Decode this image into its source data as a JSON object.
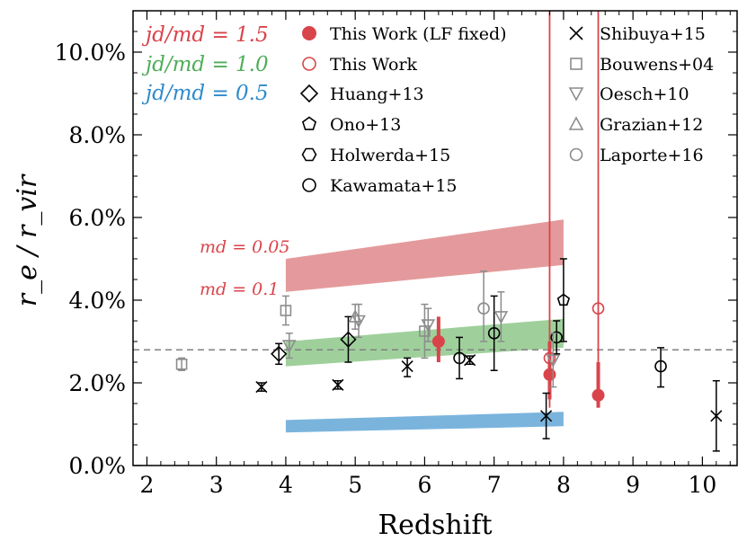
{
  "chart_data": {
    "type": "scatter",
    "title": "",
    "xlabel": "Redshift",
    "ylabel": "r_e / r_vir",
    "xlim": [
      1.8,
      10.5
    ],
    "ylim": [
      0.0,
      11.0
    ],
    "x_ticks": [
      "2",
      "3",
      "4",
      "5",
      "6",
      "7",
      "8",
      "9",
      "10"
    ],
    "y_ticks": [
      "0.0%",
      "2.0%",
      "4.0%",
      "6.0%",
      "8.0%",
      "10.0%"
    ],
    "ratio_labels": [
      {
        "text": "jd/md = 1.5",
        "color": "#d9444b"
      },
      {
        "text": "jd/md = 1.0",
        "color": "#4fae5a"
      },
      {
        "text": "jd/md = 0.5",
        "color": "#2f8bcc"
      }
    ],
    "band_labels": [
      {
        "text": "md = 0.05",
        "color": "#d9444b"
      },
      {
        "text": "md = 0.1",
        "color": "#d9444b"
      }
    ],
    "colors": {
      "red": "#d9444b",
      "black": "#000000",
      "gray": "#8c8c8c",
      "band_red": "#e49a9c",
      "band_green": "#9fd09c",
      "band_blue": "#7ab4dd",
      "dash": "#808080"
    },
    "reference_line": {
      "y": 2.8,
      "style": "dashed"
    },
    "bands": [
      {
        "name": "jd/md = 1.5",
        "color": "#e49a9c",
        "x": [
          4.0,
          8.0
        ],
        "lower": [
          4.2,
          4.85
        ],
        "upper": [
          5.0,
          5.95
        ]
      },
      {
        "name": "jd/md = 1.0",
        "color": "#9fd09c",
        "x": [
          4.0,
          8.0
        ],
        "lower": [
          2.4,
          2.85
        ],
        "upper": [
          3.0,
          3.55
        ]
      },
      {
        "name": "jd/md = 0.5",
        "color": "#7ab4dd",
        "x": [
          4.0,
          8.0
        ],
        "lower": [
          0.8,
          0.95
        ],
        "upper": [
          1.1,
          1.3
        ]
      }
    ],
    "vertical_lines": [
      {
        "x": 7.8,
        "color": "#d9444b"
      },
      {
        "x": 8.5,
        "color": "#d9444b"
      }
    ],
    "legend_left": [
      {
        "label": "This Work (LF fixed)",
        "marker": "filled_circle",
        "color": "#d9444b"
      },
      {
        "label": "This Work",
        "marker": "open_circle",
        "color": "#d9444b"
      },
      {
        "label": "Huang+13",
        "marker": "diamond",
        "color": "#000000"
      },
      {
        "label": "Ono+13",
        "marker": "pentagon",
        "color": "#000000"
      },
      {
        "label": "Holwerda+15",
        "marker": "hexagon",
        "color": "#000000"
      },
      {
        "label": "Kawamata+15",
        "marker": "open_circle",
        "color": "#000000"
      }
    ],
    "legend_right": [
      {
        "label": "Shibuya+15",
        "marker": "x",
        "color": "#000000"
      },
      {
        "label": "Bouwens+04",
        "marker": "square",
        "color": "#8c8c8c"
      },
      {
        "label": "Oesch+10",
        "marker": "triangle_down",
        "color": "#8c8c8c"
      },
      {
        "label": "Grazian+12",
        "marker": "triangle_up",
        "color": "#8c8c8c"
      },
      {
        "label": "Laporte+16",
        "marker": "open_circle",
        "color": "#8c8c8c"
      }
    ],
    "series": [
      {
        "name": "This Work (LF fixed)",
        "marker": "filled_circle",
        "color": "#d9444b",
        "points": [
          {
            "x": 6.2,
            "y": 3.0,
            "ylo": 2.5,
            "yhi": 3.6
          },
          {
            "x": 7.8,
            "y": 2.2,
            "ylo": 1.6,
            "yhi": 3.0
          },
          {
            "x": 8.5,
            "y": 1.7,
            "ylo": 1.4,
            "yhi": 2.5
          }
        ]
      },
      {
        "name": "This Work",
        "marker": "open_circle",
        "color": "#d9444b",
        "points": [
          {
            "x": 7.8,
            "y": 2.6
          },
          {
            "x": 8.5,
            "y": 3.8
          }
        ]
      },
      {
        "name": "Huang+13",
        "marker": "diamond",
        "color": "#000000",
        "points": [
          {
            "x": 3.9,
            "y": 2.7,
            "ylo": 2.45,
            "yhi": 2.95
          },
          {
            "x": 4.9,
            "y": 3.05,
            "ylo": 2.5,
            "yhi": 3.6
          }
        ]
      },
      {
        "name": "Ono+13",
        "marker": "pentagon",
        "color": "#000000",
        "points": [
          {
            "x": 8.0,
            "y": 4.0,
            "ylo": 3.0,
            "yhi": 5.0
          }
        ]
      },
      {
        "name": "Kawamata+15",
        "marker": "open_circle",
        "color": "#000000",
        "points": [
          {
            "x": 6.5,
            "y": 2.6,
            "ylo": 2.1,
            "yhi": 3.1
          },
          {
            "x": 7.0,
            "y": 3.2,
            "ylo": 2.3,
            "yhi": 4.1
          },
          {
            "x": 7.9,
            "y": 3.1,
            "ylo": 2.7,
            "yhi": 3.5
          },
          {
            "x": 9.4,
            "y": 2.4,
            "ylo": 1.9,
            "yhi": 2.85
          }
        ]
      },
      {
        "name": "Shibuya+15",
        "marker": "x",
        "color": "#000000",
        "points": [
          {
            "x": 3.65,
            "y": 1.9,
            "ylo": 1.8,
            "yhi": 2.0
          },
          {
            "x": 4.75,
            "y": 1.95,
            "ylo": 1.85,
            "yhi": 2.05
          },
          {
            "x": 5.75,
            "y": 2.4,
            "ylo": 2.15,
            "yhi": 2.6
          },
          {
            "x": 6.65,
            "y": 2.55,
            "ylo": 2.45,
            "yhi": 2.65
          },
          {
            "x": 7.75,
            "y": 1.2,
            "ylo": 0.65,
            "yhi": 1.75
          },
          {
            "x": 10.2,
            "y": 1.2,
            "ylo": 0.35,
            "yhi": 2.05
          }
        ]
      },
      {
        "name": "Bouwens+04",
        "marker": "square",
        "color": "#8c8c8c",
        "points": [
          {
            "x": 2.5,
            "y": 2.45,
            "ylo": 2.3,
            "yhi": 2.6
          },
          {
            "x": 4.0,
            "y": 3.75,
            "ylo": 3.4,
            "yhi": 4.1
          },
          {
            "x": 6.0,
            "y": 3.25,
            "ylo": 2.6,
            "yhi": 3.9
          }
        ]
      },
      {
        "name": "Oesch+10",
        "marker": "triangle_down",
        "color": "#8c8c8c",
        "points": [
          {
            "x": 4.05,
            "y": 2.9,
            "ylo": 2.6,
            "yhi": 3.2
          },
          {
            "x": 5.05,
            "y": 3.5,
            "ylo": 3.1,
            "yhi": 3.9
          },
          {
            "x": 6.05,
            "y": 3.4,
            "ylo": 3.0,
            "yhi": 3.8
          },
          {
            "x": 7.1,
            "y": 3.6,
            "ylo": 3.0,
            "yhi": 4.2
          },
          {
            "x": 7.85,
            "y": 2.55,
            "ylo": 1.9,
            "yhi": 3.2
          }
        ]
      },
      {
        "name": "Grazian+12",
        "marker": "triangle_up",
        "color": "#8c8c8c",
        "points": [
          {
            "x": 5.0,
            "y": 3.6,
            "ylo": 3.3,
            "yhi": 3.9
          }
        ]
      },
      {
        "name": "Laporte+16",
        "marker": "open_circle",
        "color": "#8c8c8c",
        "points": [
          {
            "x": 6.85,
            "y": 3.8,
            "ylo": 3.0,
            "yhi": 4.7
          }
        ]
      }
    ]
  }
}
